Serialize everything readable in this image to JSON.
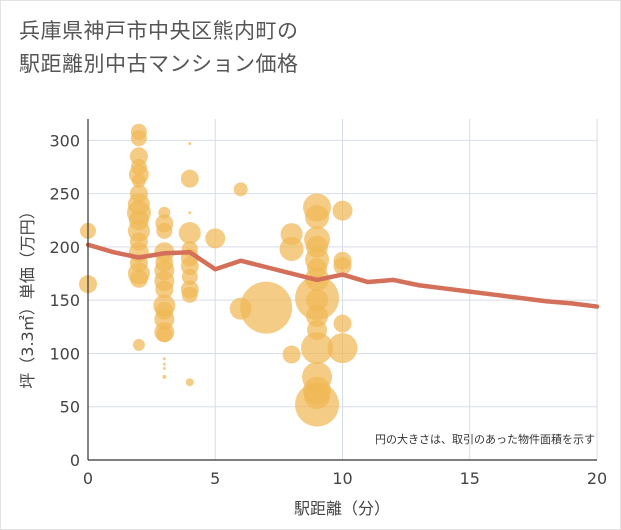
{
  "chart_data": {
    "type": "scatter",
    "title_lines": [
      "兵庫県神戸市中央区熊内町の",
      "駅距離別中古マンション価格"
    ],
    "xlabel": "駅距離（分）",
    "ylabel": "坪（3.3㎡）単価（万円）",
    "note": "円の大きさは、取引のあった物件面積を示す",
    "xlim": [
      0,
      20
    ],
    "ylim": [
      0,
      320
    ],
    "xticks": [
      0,
      5,
      10,
      15,
      20
    ],
    "yticks": [
      0,
      50,
      100,
      150,
      200,
      250,
      300
    ],
    "grid": true,
    "colors": {
      "bubble": "#f0b856",
      "line": "#d4705a"
    },
    "bubbles": [
      {
        "x": 0,
        "y": 215,
        "s": 8
      },
      {
        "x": 0,
        "y": 165,
        "s": 9
      },
      {
        "x": 2,
        "y": 308,
        "s": 8
      },
      {
        "x": 2,
        "y": 302,
        "s": 8
      },
      {
        "x": 2,
        "y": 285,
        "s": 9
      },
      {
        "x": 2,
        "y": 275,
        "s": 8
      },
      {
        "x": 2,
        "y": 268,
        "s": 10
      },
      {
        "x": 2,
        "y": 262,
        "s": 7
      },
      {
        "x": 2,
        "y": 250,
        "s": 9
      },
      {
        "x": 2,
        "y": 240,
        "s": 11
      },
      {
        "x": 2,
        "y": 232,
        "s": 12
      },
      {
        "x": 2,
        "y": 225,
        "s": 10
      },
      {
        "x": 2,
        "y": 215,
        "s": 11
      },
      {
        "x": 2,
        "y": 205,
        "s": 9
      },
      {
        "x": 2,
        "y": 195,
        "s": 10
      },
      {
        "x": 2,
        "y": 185,
        "s": 9
      },
      {
        "x": 2,
        "y": 175,
        "s": 11
      },
      {
        "x": 2,
        "y": 170,
        "s": 9
      },
      {
        "x": 2,
        "y": 108,
        "s": 6
      },
      {
        "x": 3,
        "y": 232,
        "s": 6
      },
      {
        "x": 3,
        "y": 222,
        "s": 9
      },
      {
        "x": 3,
        "y": 215,
        "s": 8
      },
      {
        "x": 3,
        "y": 195,
        "s": 10
      },
      {
        "x": 3,
        "y": 185,
        "s": 9
      },
      {
        "x": 3,
        "y": 178,
        "s": 10
      },
      {
        "x": 3,
        "y": 168,
        "s": 10
      },
      {
        "x": 3,
        "y": 160,
        "s": 9
      },
      {
        "x": 3,
        "y": 145,
        "s": 11
      },
      {
        "x": 3,
        "y": 140,
        "s": 9
      },
      {
        "x": 3,
        "y": 132,
        "s": 10
      },
      {
        "x": 3,
        "y": 120,
        "s": 10
      },
      {
        "x": 3,
        "y": 118,
        "s": 8
      },
      {
        "x": 3,
        "y": 95,
        "s": 1.5
      },
      {
        "x": 3,
        "y": 90,
        "s": 1.5
      },
      {
        "x": 3,
        "y": 86,
        "s": 1.5
      },
      {
        "x": 3,
        "y": 78,
        "s": 2
      },
      {
        "x": 4,
        "y": 297,
        "s": 1.5
      },
      {
        "x": 4,
        "y": 264,
        "s": 9
      },
      {
        "x": 4,
        "y": 232,
        "s": 1.5
      },
      {
        "x": 4,
        "y": 213,
        "s": 11
      },
      {
        "x": 4,
        "y": 198,
        "s": 8
      },
      {
        "x": 4,
        "y": 190,
        "s": 9
      },
      {
        "x": 4,
        "y": 182,
        "s": 9
      },
      {
        "x": 4,
        "y": 172,
        "s": 8
      },
      {
        "x": 4,
        "y": 160,
        "s": 9
      },
      {
        "x": 4,
        "y": 155,
        "s": 8
      },
      {
        "x": 4,
        "y": 73,
        "s": 4
      },
      {
        "x": 5,
        "y": 208,
        "s": 10
      },
      {
        "x": 6,
        "y": 254,
        "s": 7
      },
      {
        "x": 6,
        "y": 142,
        "s": 11
      },
      {
        "x": 7,
        "y": 143,
        "s": 26
      },
      {
        "x": 8,
        "y": 212,
        "s": 11
      },
      {
        "x": 8,
        "y": 198,
        "s": 12
      },
      {
        "x": 8,
        "y": 99,
        "s": 9
      },
      {
        "x": 9,
        "y": 237,
        "s": 14
      },
      {
        "x": 9,
        "y": 228,
        "s": 12
      },
      {
        "x": 9,
        "y": 207,
        "s": 13
      },
      {
        "x": 9,
        "y": 200,
        "s": 11
      },
      {
        "x": 9,
        "y": 188,
        "s": 12
      },
      {
        "x": 9,
        "y": 180,
        "s": 10
      },
      {
        "x": 9,
        "y": 170,
        "s": 12
      },
      {
        "x": 9,
        "y": 152,
        "s": 22
      },
      {
        "x": 9,
        "y": 150,
        "s": 11
      },
      {
        "x": 9,
        "y": 135,
        "s": 11
      },
      {
        "x": 9,
        "y": 122,
        "s": 10
      },
      {
        "x": 9,
        "y": 105,
        "s": 16
      },
      {
        "x": 9,
        "y": 78,
        "s": 15
      },
      {
        "x": 9,
        "y": 65,
        "s": 14
      },
      {
        "x": 9,
        "y": 60,
        "s": 13
      },
      {
        "x": 9,
        "y": 52,
        "s": 22
      },
      {
        "x": 10,
        "y": 234,
        "s": 10
      },
      {
        "x": 10,
        "y": 187,
        "s": 9
      },
      {
        "x": 10,
        "y": 182,
        "s": 9
      },
      {
        "x": 10,
        "y": 128,
        "s": 9
      },
      {
        "x": 10,
        "y": 105,
        "s": 15
      }
    ],
    "line": {
      "x": [
        0,
        1,
        2,
        3,
        4,
        5,
        6,
        7,
        8,
        9,
        10,
        11,
        12,
        13,
        14,
        15,
        16,
        17,
        18,
        19,
        20
      ],
      "y": [
        202,
        195,
        190,
        194,
        195,
        179,
        187,
        181,
        175,
        169,
        174,
        167,
        169,
        164,
        161,
        158,
        155,
        152,
        149,
        147,
        144
      ]
    }
  }
}
